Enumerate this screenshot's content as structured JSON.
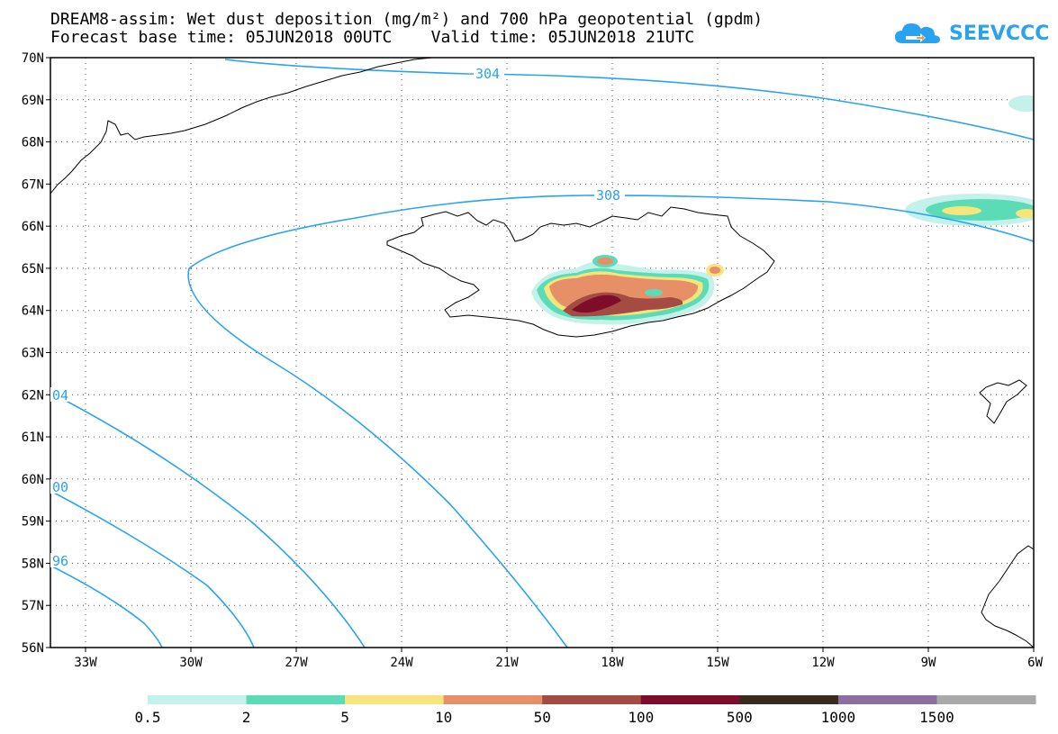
{
  "title_line1": "DREAM8-assim: Wet dust deposition (mg/m²) and 700 hPa geopotential (gpdm)",
  "title_line2": "Forecast base time: 05JUN2018 00UTC    Valid time: 05JUN2018 21UTC",
  "logo": {
    "text": "SEEVCCC",
    "icon": "cloud-logo-icon",
    "color": "#29a3ef"
  },
  "map": {
    "lon_range": [
      -34,
      -6
    ],
    "lat_range": [
      56,
      70
    ],
    "lat_labels": [
      "70N",
      "69N",
      "68N",
      "67N",
      "66N",
      "65N",
      "64N",
      "63N",
      "62N",
      "61N",
      "60N",
      "59N",
      "58N",
      "57N",
      "56N"
    ],
    "lon_labels": [
      "33W",
      "30W",
      "27W",
      "24W",
      "21W",
      "18W",
      "15W",
      "12W",
      "9W",
      "6W"
    ],
    "contour_color": "#29a3ef",
    "contour_labels": [
      "304",
      "308",
      "04",
      "00",
      "96"
    ]
  },
  "colorbar": {
    "colors": [
      "#c4f2ea",
      "#5cdcb6",
      "#f5e57c",
      "#e78f67",
      "#a44b43",
      "#7d0d2a",
      "#3a2a1d",
      "#8e6ea0",
      "#a9a9a9"
    ],
    "labels": [
      "0.5",
      "2",
      "5",
      "10",
      "50",
      "100",
      "500",
      "1000",
      "1500"
    ]
  }
}
